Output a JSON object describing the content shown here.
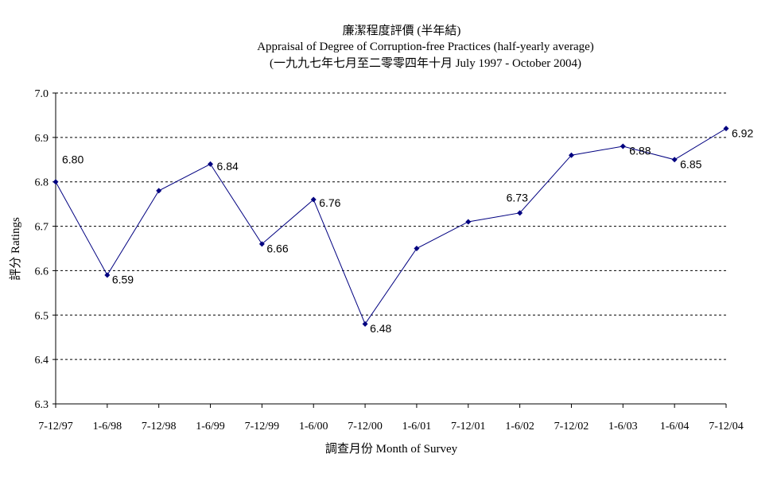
{
  "chart_data": {
    "type": "line",
    "title": "廉潔程度評價 (半年結)",
    "subtitle": "Appraisal of Degree of Corruption-free Practices (half-yearly average)",
    "subtitle2": "(一九九七年七月至二零零四年十月 July 1997 -  October 2004)",
    "xlabel": "調查月份 Month of Survey",
    "ylabel": "評分 Ratings",
    "ylim": [
      6.3,
      7.0
    ],
    "yticks": [
      "6.3",
      "6.4",
      "6.5",
      "6.6",
      "6.7",
      "6.8",
      "6.9",
      "7.0"
    ],
    "categories": [
      "7-12/97",
      "1-6/98",
      "7-12/98",
      "1-6/99",
      "7-12/99",
      "1-6/00",
      "7-12/00",
      "1-6/01",
      "7-12/01",
      "1-6/02",
      "7-12/02",
      "1-6/03",
      "1-6/04",
      "7-12/04"
    ],
    "values": [
      6.8,
      6.59,
      6.78,
      6.84,
      6.66,
      6.76,
      6.48,
      6.65,
      6.71,
      6.73,
      6.86,
      6.88,
      6.85,
      6.92
    ],
    "data_labels": [
      "6.80",
      "6.59",
      "",
      "6.84",
      "6.66",
      "6.76",
      "6.48",
      "",
      "",
      "6.73",
      "",
      "6.88",
      "6.85",
      "6.92"
    ],
    "grid": "horizontal dashed",
    "colors": {
      "series": "#000080",
      "grid": "#000000",
      "axis": "#000000"
    }
  }
}
